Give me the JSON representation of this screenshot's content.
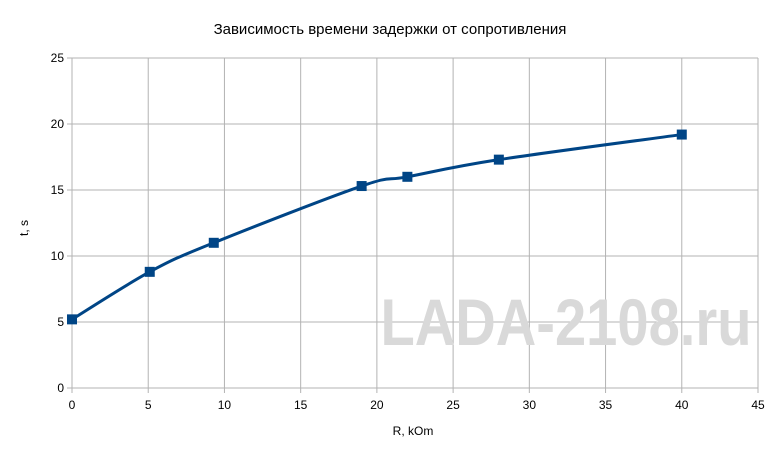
{
  "chart_data": {
    "type": "line",
    "title": "Зависимость времени задержки от сопротивления",
    "xlabel": "R, kOm",
    "ylabel": "t, s",
    "xlim": [
      0,
      45
    ],
    "ylim": [
      0,
      25
    ],
    "x_ticks": [
      "0",
      "5",
      "10",
      "15",
      "20",
      "25",
      "30",
      "35",
      "40",
      "45"
    ],
    "y_ticks": [
      "0",
      "5",
      "10",
      "15",
      "20",
      "25"
    ],
    "grid": true,
    "legend": "none",
    "series": [
      {
        "x": [
          0,
          5.1,
          9.3,
          19,
          22,
          28,
          40
        ],
        "y": [
          5.2,
          8.8,
          11,
          15.3,
          16,
          17.3,
          19.2
        ],
        "color": "#004586",
        "marker": "square"
      }
    ]
  },
  "watermark": "LADA-2108.ru"
}
